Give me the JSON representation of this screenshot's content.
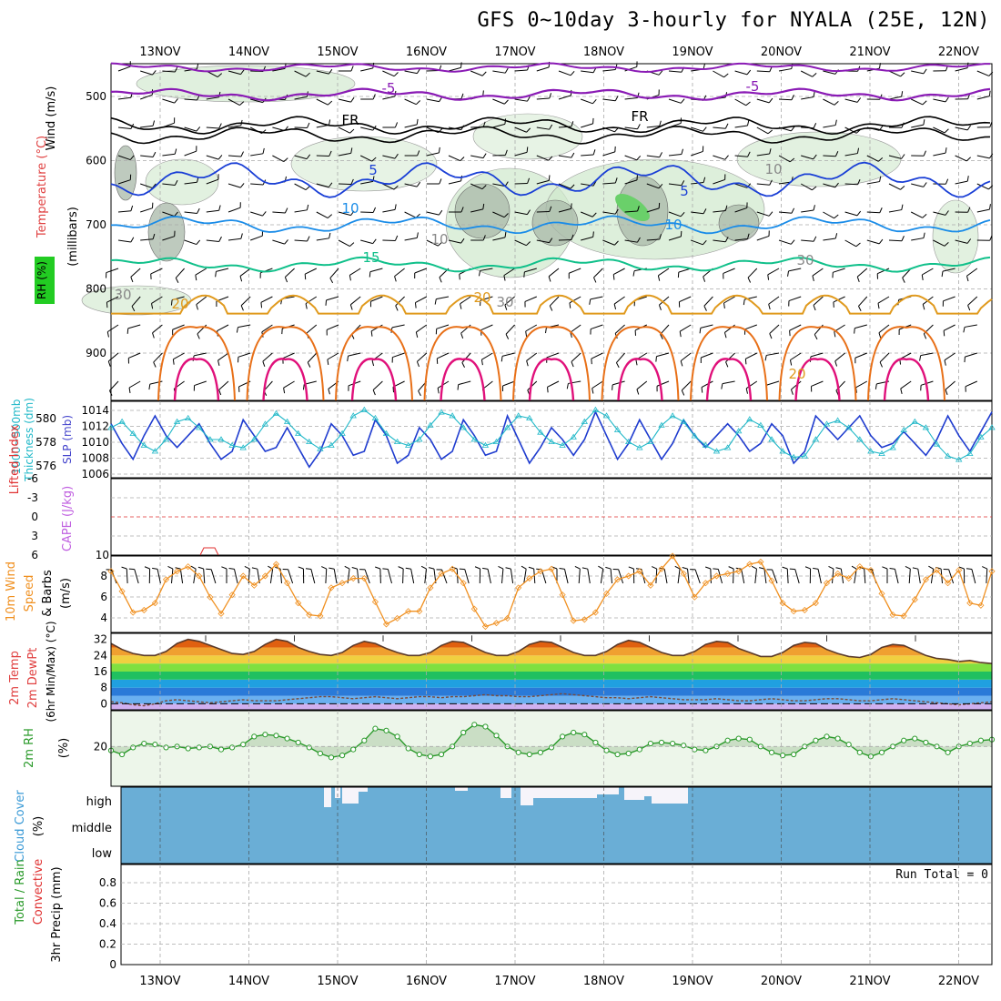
{
  "title": "GFS 0~10day 3-hourly for NYALA (25E, 12N)",
  "dates": [
    "13NOV",
    "14NOV",
    "15NOV",
    "16NOV",
    "17NOV",
    "18NOV",
    "19NOV",
    "20NOV",
    "21NOV",
    "22NOV"
  ],
  "colors": {
    "purple": "#8a1bb5",
    "black": "#000000",
    "blue": "#1a3fd6",
    "skyblue": "#1a8ce8",
    "green": "#10c08a",
    "gold": "#e09a1e",
    "orange": "#e87018",
    "magenta": "#e0107a",
    "cyan": "#20b8c8",
    "sea": "#1f3ccf",
    "red": "#e03030",
    "windorange": "#f09020",
    "rhgreen": "#2a9a2a",
    "cloud": "#6aaed6",
    "lavender": "#e8e4f4"
  },
  "upper_panel": {
    "ylabel_wind": "Wind (m/s)",
    "ylabel_temp": "Temperature (°C)",
    "ylabel_rh": "RH (%)",
    "ylabel_p": "(millibars)",
    "levels": [
      500,
      600,
      700,
      800,
      900
    ],
    "contour_labels": {
      "m5": "-5",
      "fr": "FR",
      "p5": "5",
      "p10": "10",
      "p15": "15",
      "p20": "20",
      "rh10": "10",
      "rh30": "30"
    }
  },
  "thickness_panel": {
    "ylabel_thick": "Thickness (dm)",
    "ylabel_thick2": "1000~500mb",
    "ylabel_slp": "SLP (mb)",
    "thick_ticks": [
      "580",
      "578",
      "576"
    ],
    "slp_ticks": [
      "1014",
      "1012",
      "1010",
      "1008",
      "1006"
    ],
    "chart_data": {
      "type": "line",
      "series": [
        {
          "name": "SLP (mb)",
          "color": "#1f3ccf",
          "range": [
            1006,
            1015
          ],
          "values": [
            1012.5,
            1010,
            1008,
            1011,
            1013.5,
            1011,
            1009.5,
            1011,
            1012.5,
            1010,
            1008,
            1009,
            1013,
            1011,
            1009,
            1009.5,
            1012,
            1009.5,
            1007,
            1009,
            1012.5,
            1011,
            1008.5,
            1009,
            1013,
            1011,
            1007.5,
            1008.5,
            1012,
            1010.5,
            1008,
            1009,
            1013,
            1011,
            1008.5,
            1009,
            1013.5,
            1010.5,
            1007.5,
            1009.5,
            1012,
            1010.5,
            1008.5,
            1010.5,
            1014,
            1011,
            1008,
            1010,
            1013,
            1010.5,
            1008,
            1010,
            1013,
            1011,
            1009.5,
            1011,
            1012.5,
            1011,
            1009,
            1010,
            1012.5,
            1011,
            1007.5,
            1009,
            1013.5,
            1012,
            1010.5,
            1012,
            1013.5,
            1011,
            1009.5,
            1010,
            1011.5,
            1010,
            1008.5,
            1010.5,
            1013.5,
            1011,
            1009,
            1011.5,
            1014
          ]
        },
        {
          "name": "Thickness (dm)",
          "color": "#20b8c8",
          "range": [
            575,
            581
          ],
          "values": [
            579,
            579.5,
            578.5,
            577.5,
            577,
            578,
            579.5,
            579.8,
            579,
            578,
            578,
            577.5,
            577.3,
            578,
            579.3,
            580.2,
            579.5,
            578.5,
            577.8,
            577.2,
            577.5,
            578.5,
            580,
            580.5,
            579.8,
            578.5,
            577.8,
            577.5,
            578,
            579.2,
            580.3,
            580,
            579,
            578,
            577.5,
            577.8,
            579,
            580,
            579.8,
            578.6,
            577.8,
            577.5,
            578.2,
            579.5,
            580.5,
            580,
            578.8,
            577.8,
            577.3,
            577.8,
            579.2,
            580,
            579.5,
            578.3,
            577.5,
            577,
            577.3,
            578.7,
            579.7,
            579.2,
            578,
            577,
            576.5,
            576.6,
            578,
            579.3,
            579.6,
            579,
            578,
            577,
            576.8,
            577.3,
            578.8,
            579.5,
            579,
            577.6,
            576.6,
            576.3,
            576.8,
            578.2,
            579
          ]
        }
      ]
    }
  },
  "cape_panel": {
    "ylabel_li": "Lifted Index",
    "ylabel_cape": "CAPE (J/kg)",
    "ticks": [
      "-6",
      "-3",
      "0",
      "3",
      "6"
    ],
    "right_tick": "10"
  },
  "wind_panel": {
    "ylabel1": "10m Wind",
    "ylabel2": "Speed",
    "ylabel3": "& Barbs",
    "ylabel4": "(m/s)",
    "ticks": [
      "8",
      "6",
      "4"
    ],
    "chart_data": {
      "type": "line",
      "series": [
        {
          "name": "10m Wind Speed (m/s)",
          "color": "#f09020",
          "range": [
            3,
            9.5
          ],
          "values": [
            8.2,
            6.5,
            4.7,
            4.9,
            5.5,
            7.5,
            8.2,
            8.6,
            7.8,
            6.0,
            4.6,
            6.2,
            7.8,
            7.0,
            7.8,
            8.8,
            7.2,
            5.5,
            4.5,
            4.4,
            6.8,
            7.2,
            7.6,
            7.6,
            5.6,
            3.7,
            4.2,
            4.8,
            4.8,
            6.8,
            8.0,
            8.4,
            7.2,
            5.0,
            3.5,
            3.8,
            4.2,
            6.8,
            7.6,
            8.2,
            8.4,
            6.2,
            4.0,
            4.1,
            4.7,
            6.3,
            7.5,
            7.8,
            8.2,
            7.0,
            8.4,
            9.5,
            8.0,
            6.0,
            7.2,
            7.8,
            8.0,
            8.2,
            8.8,
            9.0,
            7.4,
            5.5,
            4.8,
            4.9,
            5.5,
            7.2,
            8.0,
            7.6,
            8.6,
            8.3,
            6.3,
            4.5,
            4.4,
            5.8,
            7.5,
            8.3,
            7.2,
            8.3,
            5.5,
            5.3,
            8.2
          ]
        }
      ]
    }
  },
  "temp_panel": {
    "ylabel1": "2m Temp",
    "ylabel2": "2m DewPt",
    "ylabel3": "(6hr Min/Max) (°C)",
    "ticks": [
      "32",
      "24",
      "16",
      "8",
      "0"
    ],
    "chart_data": {
      "type": "area",
      "series": [
        {
          "name": "2m Temp",
          "range": [
            -3,
            35
          ],
          "values": [
            30,
            27,
            25,
            24,
            24,
            26,
            30,
            32,
            31,
            29,
            27,
            25,
            24.5,
            26,
            29.5,
            32,
            31,
            28,
            26,
            24.5,
            24,
            25.5,
            29,
            31,
            30,
            27.5,
            25.5,
            24,
            24,
            25.5,
            29,
            31,
            30.5,
            28,
            25.5,
            24,
            24,
            26,
            29.5,
            31,
            30.5,
            28,
            25.5,
            24,
            24,
            26,
            29.5,
            31.5,
            30.5,
            28,
            25.5,
            24,
            24,
            26,
            29.5,
            31,
            30.5,
            27.5,
            25.5,
            23.5,
            23.5,
            25.5,
            29,
            30.5,
            30,
            27,
            25,
            23.5,
            23,
            24.5,
            28,
            29.5,
            29,
            26.5,
            24,
            22.5,
            22,
            21,
            21.5,
            20.5,
            20
          ]
        },
        {
          "name": "2m DewPt",
          "range": [
            -3,
            35
          ],
          "values": [
            1,
            0.5,
            -0.5,
            -1,
            0,
            1.5,
            2,
            1.5,
            1,
            0.5,
            1,
            1.5,
            2,
            1.5,
            1.5,
            1.5,
            2,
            2.5,
            3,
            3.5,
            3.5,
            3,
            2.5,
            3,
            3.5,
            3,
            2.5,
            3,
            3.5,
            3.5,
            3,
            3.5,
            3.5,
            4,
            4.5,
            4,
            4,
            3.5,
            3.5,
            4,
            4.5,
            5,
            4.5,
            4,
            3.5,
            3,
            3,
            2.5,
            3,
            3.5,
            3,
            2.5,
            2,
            2,
            2,
            2.5,
            2,
            1.5,
            1.5,
            2,
            2.5,
            2,
            1.5,
            1.5,
            2,
            2.5,
            2.5,
            2,
            1.5,
            1.5,
            2,
            2.5,
            2,
            1.5,
            1,
            0.5,
            0,
            -0.5,
            0,
            0.5,
            1
          ]
        }
      ]
    }
  },
  "rh_panel": {
    "ylabel1": "2m RH",
    "ylabel2": "(%)",
    "ticks": [
      "20"
    ],
    "chart_data": {
      "type": "area",
      "series": [
        {
          "name": "2m RH (%)",
          "range": [
            0,
            38
          ],
          "values": [
            18,
            16,
            19.5,
            21.5,
            21,
            19.5,
            20,
            19,
            19.5,
            20,
            18.5,
            19.5,
            21,
            25,
            26,
            25.5,
            24,
            22,
            19.5,
            16.5,
            14.5,
            15.5,
            18.5,
            23,
            29,
            28,
            25,
            19,
            16,
            15,
            16,
            20,
            27,
            31,
            30,
            25.5,
            20,
            17,
            16,
            17,
            19.5,
            25,
            27,
            26,
            22,
            18,
            16,
            16.5,
            18.5,
            21.5,
            22,
            21.5,
            20.5,
            18.5,
            18,
            20,
            23,
            24,
            23.5,
            20,
            17,
            15.5,
            16,
            20,
            23,
            25,
            24,
            21,
            17,
            15,
            17,
            20,
            23,
            24,
            22,
            20,
            17,
            20,
            21.5,
            23,
            23.5
          ]
        }
      ]
    }
  },
  "cloud_panel": {
    "ylabel1": "Cloud Cover",
    "ylabel2": "(%)",
    "high": "high",
    "middle": "middle",
    "low": "low"
  },
  "precip_panel": {
    "ylabel1": "Total / Rain",
    "ylabel2": "Convective",
    "ylabel3": "3hr Precip (mm)",
    "run_total": "Run Total = 0",
    "ticks": [
      "0.8",
      "0.6",
      "0.4",
      "0.2",
      "0"
    ]
  }
}
